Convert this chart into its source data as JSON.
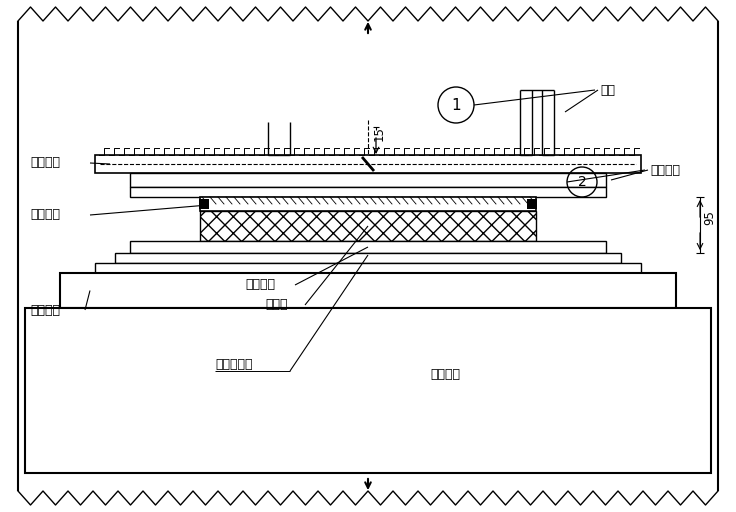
{
  "bg_color": "#ffffff",
  "line_color": "#000000",
  "labels": {
    "zuo_ding_ban": "支座顶板",
    "zhong_jian_gang_ban": "中间钙板",
    "zuo_dian_shi": "支座垫石",
    "zuo_di_ban": "支座底板",
    "xiang_jiao_kuai": "橡胶块",
    "zhi_cheng_zhong_xin_xian": "支承中心线",
    "qiao_liang_xia_bu": "桥梁下部",
    "han_feng": "焊缝",
    "gang_ban_han_feng": "钙板焊缝",
    "dim_15": "15",
    "dim_95": "95"
  },
  "fig_width": 7.36,
  "fig_height": 5.12,
  "dpi": 100
}
